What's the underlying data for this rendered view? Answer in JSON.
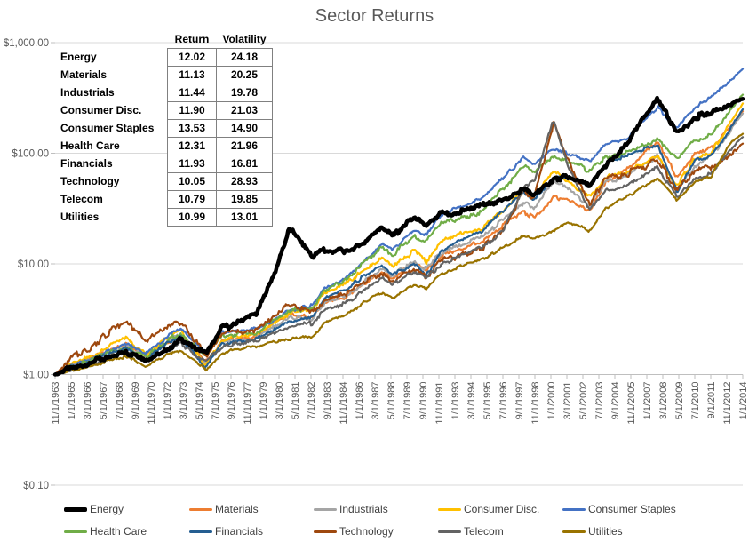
{
  "chart": {
    "title": "Sector Returns",
    "background": "#ffffff",
    "gridline_color": "#d9d9d9",
    "axis_color": "#bfbfbf",
    "axis_label_color": "#595959"
  },
  "table": {
    "headers": [
      "Return",
      "Volatility"
    ],
    "rows": [
      {
        "label": "Energy",
        "return": "12.02",
        "volatility": "24.18"
      },
      {
        "label": "Materials",
        "return": "11.13",
        "volatility": "20.25"
      },
      {
        "label": "Industrials",
        "return": "11.44",
        "volatility": "19.78"
      },
      {
        "label": "Consumer Disc.",
        "return": "11.90",
        "volatility": "21.03"
      },
      {
        "label": "Consumer Staples",
        "return": "13.53",
        "volatility": "14.90"
      },
      {
        "label": "Health Care",
        "return": "12.31",
        "volatility": "21.96"
      },
      {
        "label": "Financials",
        "return": "11.93",
        "volatility": "16.81"
      },
      {
        "label": "Technology",
        "return": "10.05",
        "volatility": "28.93"
      },
      {
        "label": "Telecom",
        "return": "10.79",
        "volatility": "19.85"
      },
      {
        "label": "Utilities",
        "return": "10.99",
        "volatility": "13.01"
      }
    ]
  },
  "legend": {
    "items": [
      {
        "label": "Energy",
        "color": "#000000"
      },
      {
        "label": "Materials",
        "color": "#ED7D31"
      },
      {
        "label": "Industrials",
        "color": "#A5A5A5"
      },
      {
        "label": "Consumer Disc.",
        "color": "#FFC000"
      },
      {
        "label": "Consumer Staples",
        "color": "#4472C4"
      },
      {
        "label": "Health Care",
        "color": "#70AD47"
      },
      {
        "label": "Financials",
        "color": "#255E91"
      },
      {
        "label": "Technology",
        "color": "#9E480E"
      },
      {
        "label": "Telecom",
        "color": "#636363"
      },
      {
        "label": "Utilities",
        "color": "#997300"
      }
    ]
  },
  "chart_data": {
    "type": "line",
    "title": "Sector Returns",
    "y_axis": {
      "scale": "log",
      "tick_labels": [
        "$1,000.00",
        "$100.00",
        "$10.00",
        "$1.00",
        "$0.10"
      ],
      "tick_values": [
        1000,
        100,
        10,
        1,
        0.1
      ],
      "range": [
        0.1,
        1000
      ],
      "grid": true
    },
    "x_axis": {
      "start": "11/1/1963",
      "end": "1/1/2014",
      "tick_interval_months": 14,
      "tick_labels": [
        "11/1/1963",
        "1/1/1965",
        "3/1/1966",
        "5/1/1967",
        "7/1/1968",
        "9/1/1969",
        "11/1/1970",
        "1/1/1972",
        "3/1/1973",
        "5/1/1974",
        "7/1/1975",
        "9/1/1976",
        "11/1/1977",
        "1/1/1979",
        "3/1/1980",
        "5/1/1981",
        "7/1/1982",
        "9/1/1983",
        "11/1/1984",
        "1/1/1986",
        "3/1/1987",
        "5/1/1988",
        "7/1/1989",
        "9/1/1990",
        "11/1/1991",
        "1/1/1993",
        "3/1/1994",
        "5/1/1995",
        "7/1/1996",
        "9/1/1997",
        "11/1/1998",
        "1/1/2000",
        "3/1/2001",
        "5/1/2002",
        "7/1/2003",
        "9/1/2004",
        "11/1/2005",
        "1/1/2007",
        "3/1/2008",
        "5/1/2009",
        "7/1/2010",
        "9/1/2011",
        "11/1/2012",
        "1/1/2014"
      ]
    },
    "anchor_years": [
      1963.83,
      1965,
      1966.5,
      1968,
      1969,
      1970.5,
      1972,
      1973,
      1974.8,
      1976,
      1977,
      1978.5,
      1980,
      1980.9,
      1982.6,
      1983.5,
      1985,
      1986.5,
      1987.7,
      1988.5,
      1990,
      1990.9,
      1992,
      1993.5,
      1995,
      1996.5,
      1998,
      1998.8,
      2000.2,
      2001.2,
      2002.8,
      2004,
      2005.5,
      2007.8,
      2009.2,
      2010.5,
      2011.7,
      2013,
      2014
    ],
    "series": [
      {
        "name": "Energy",
        "color": "#000000",
        "line_width": 4.5,
        "volatility": 24.18,
        "values": [
          1.0,
          1.15,
          1.3,
          1.5,
          1.6,
          1.35,
          1.7,
          2.1,
          1.6,
          2.6,
          2.9,
          3.6,
          9.0,
          21.0,
          11.5,
          13.5,
          13.0,
          16.0,
          22.0,
          18.0,
          26.0,
          23.0,
          28.0,
          30.0,
          34.0,
          38.0,
          46.0,
          42.0,
          58.0,
          62.0,
          52.0,
          75.0,
          120.0,
          320.0,
          150.0,
          210.0,
          230.0,
          270.0,
          310.0
        ]
      },
      {
        "name": "Materials",
        "color": "#ED7D31",
        "line_width": 2.2,
        "volatility": 20.25,
        "values": [
          1.0,
          1.2,
          1.4,
          1.7,
          1.85,
          1.4,
          1.95,
          2.3,
          1.3,
          2.0,
          2.1,
          2.2,
          3.0,
          3.5,
          3.2,
          4.5,
          5.0,
          6.8,
          8.5,
          7.5,
          10.0,
          8.8,
          12.0,
          14.0,
          16.0,
          22.0,
          30.0,
          26.0,
          40.0,
          38.0,
          30.0,
          55.0,
          70.0,
          130.0,
          60.0,
          100.0,
          110.0,
          170.0,
          240.0
        ]
      },
      {
        "name": "Industrials",
        "color": "#A5A5A5",
        "line_width": 2.2,
        "volatility": 19.78,
        "values": [
          1.0,
          1.18,
          1.35,
          1.65,
          1.8,
          1.4,
          1.95,
          2.25,
          1.25,
          1.95,
          2.05,
          2.1,
          2.8,
          3.3,
          3.2,
          4.4,
          5.2,
          7.0,
          9.0,
          7.8,
          10.5,
          9.0,
          12.5,
          15.0,
          17.5,
          25.0,
          36.0,
          32.0,
          55.0,
          48.0,
          33.0,
          55.0,
          62.0,
          95.0,
          48.0,
          75.0,
          95.0,
          155.0,
          229.0
        ]
      },
      {
        "name": "Consumer Disc.",
        "color": "#FFC000",
        "line_width": 2.2,
        "volatility": 21.03,
        "values": [
          1.0,
          1.25,
          1.45,
          1.9,
          2.1,
          1.5,
          2.2,
          2.5,
          1.2,
          2.0,
          2.2,
          2.3,
          3.1,
          3.6,
          3.8,
          5.5,
          6.5,
          9.0,
          11.5,
          9.5,
          13.0,
          10.5,
          16.5,
          19.0,
          21.0,
          30.0,
          45.0,
          40.0,
          70.0,
          55.0,
          40.0,
          62.0,
          68.0,
          95.0,
          50.0,
          90.0,
          100.0,
          180.0,
          282.0
        ]
      },
      {
        "name": "Consumer Staples",
        "color": "#4472C4",
        "line_width": 2.2,
        "volatility": 14.9,
        "values": [
          1.0,
          1.2,
          1.4,
          1.7,
          1.9,
          1.55,
          2.2,
          2.6,
          1.6,
          2.4,
          2.5,
          2.6,
          3.2,
          3.8,
          4.2,
          6.0,
          7.5,
          11.0,
          15.0,
          13.5,
          20.0,
          18.5,
          28.0,
          33.0,
          40.0,
          60.0,
          90.0,
          80.0,
          110.0,
          100.0,
          85.0,
          120.0,
          135.0,
          260.0,
          170.0,
          260.0,
          320.0,
          440.0,
          580.0
        ]
      },
      {
        "name": "Health Care",
        "color": "#70AD47",
        "line_width": 2.2,
        "volatility": 21.96,
        "values": [
          1.0,
          1.15,
          1.35,
          1.6,
          1.75,
          1.45,
          2.0,
          2.4,
          1.5,
          2.2,
          2.3,
          2.4,
          3.2,
          3.8,
          4.0,
          5.8,
          7.0,
          10.5,
          14.0,
          12.0,
          18.0,
          16.0,
          24.0,
          26.0,
          30.0,
          48.0,
          75.0,
          68.0,
          95.0,
          85.0,
          70.0,
          92.0,
          100.0,
          130.0,
          90.0,
          130.0,
          145.0,
          240.0,
          339.0
        ]
      },
      {
        "name": "Financials",
        "color": "#255E91",
        "line_width": 2.2,
        "volatility": 16.81,
        "values": [
          1.0,
          1.15,
          1.3,
          1.6,
          1.75,
          1.35,
          1.9,
          2.2,
          1.15,
          1.9,
          2.0,
          2.1,
          2.6,
          3.0,
          3.3,
          4.8,
          5.8,
          8.0,
          9.5,
          8.0,
          10.0,
          7.8,
          13.0,
          16.5,
          20.0,
          30.0,
          45.0,
          38.0,
          60.0,
          62.0,
          50.0,
          80.0,
          95.0,
          120.0,
          45.0,
          85.0,
          95.0,
          160.0,
          250.0
        ]
      },
      {
        "name": "Technology",
        "color": "#9E480E",
        "line_width": 2.2,
        "volatility": 28.93,
        "values": [
          1.0,
          1.4,
          1.8,
          2.6,
          3.0,
          2.1,
          2.6,
          3.0,
          1.5,
          2.3,
          2.4,
          2.6,
          3.6,
          4.3,
          3.6,
          4.8,
          5.4,
          7.0,
          8.5,
          7.0,
          9.0,
          7.8,
          10.5,
          12.0,
          14.0,
          20.0,
          45.0,
          40.0,
          195.0,
          90.0,
          35.0,
          60.0,
          65.0,
          85.0,
          45.0,
          70.0,
          75.0,
          95.0,
          122.0
        ]
      },
      {
        "name": "Telecom",
        "color": "#636363",
        "line_width": 2.2,
        "volatility": 19.85,
        "values": [
          1.0,
          1.1,
          1.25,
          1.45,
          1.6,
          1.35,
          1.7,
          1.9,
          1.3,
          1.8,
          1.9,
          2.0,
          2.4,
          2.7,
          2.9,
          3.8,
          4.4,
          6.0,
          7.5,
          6.5,
          8.5,
          7.5,
          10.0,
          12.0,
          14.0,
          20.0,
          50.0,
          55.0,
          205.0,
          80.0,
          30.0,
          45.0,
          50.0,
          75.0,
          40.0,
          60.0,
          65.0,
          105.0,
          140.0
        ]
      },
      {
        "name": "Utilities",
        "color": "#997300",
        "line_width": 2.2,
        "volatility": 13.01,
        "values": [
          1.0,
          1.1,
          1.2,
          1.35,
          1.45,
          1.2,
          1.5,
          1.65,
          1.1,
          1.55,
          1.7,
          1.8,
          2.0,
          2.1,
          2.2,
          2.9,
          3.4,
          4.6,
          5.5,
          5.0,
          6.5,
          6.0,
          8.0,
          9.5,
          11.0,
          14.0,
          18.0,
          17.0,
          20.0,
          24.0,
          20.0,
          32.0,
          40.0,
          60.0,
          38.0,
          55.0,
          62.0,
          120.0,
          150.0
        ]
      }
    ]
  }
}
